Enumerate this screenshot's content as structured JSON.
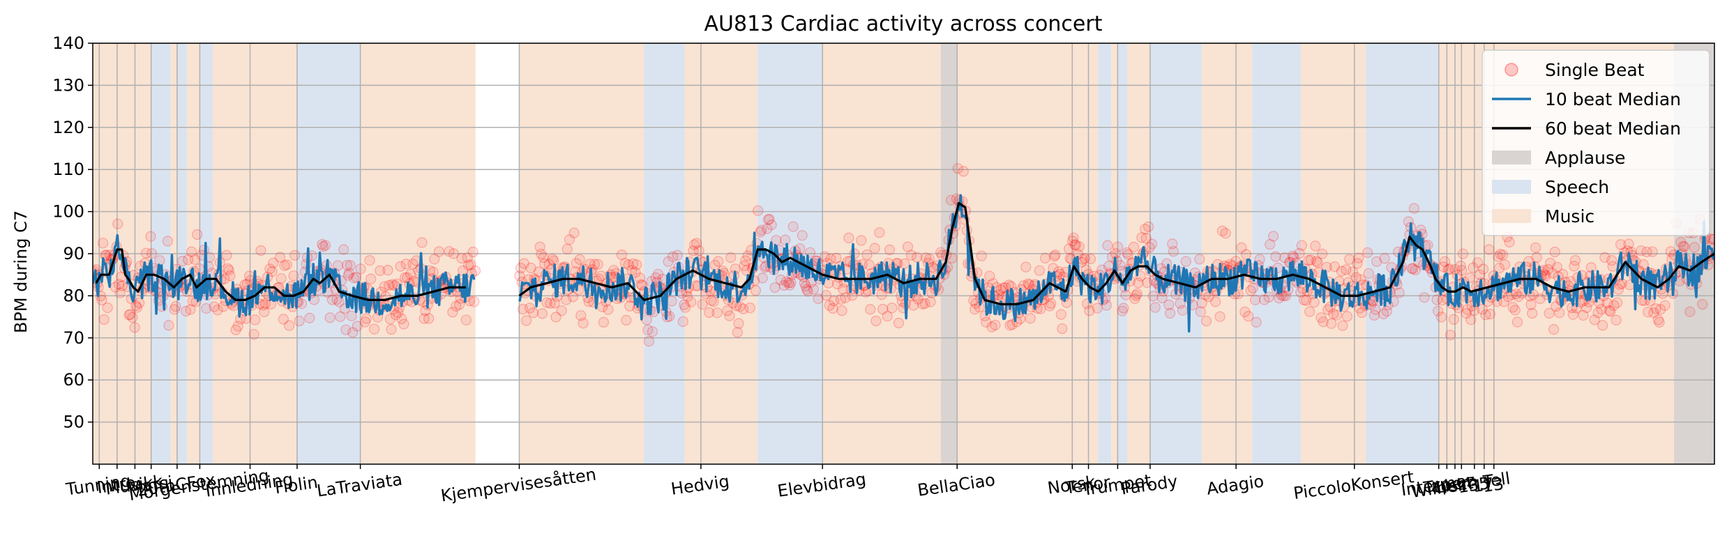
{
  "chart_data": {
    "type": "line",
    "title": "AU813 Cardiac activity across concert",
    "xlabel": "",
    "ylabel": "BPM during C7",
    "ylim": [
      40,
      140
    ],
    "yticks": [
      50,
      60,
      70,
      80,
      90,
      100,
      110,
      120,
      130,
      140
    ],
    "xlim": [
      0,
      1000
    ],
    "grid": true,
    "legend_position": "top-right",
    "colors": {
      "single_beat": "#ff0000",
      "median10": "#1f77b4",
      "median60": "#000000",
      "applause": "#d9d4d2",
      "speech": "#dae4f0",
      "music": "#f9e3d3"
    },
    "legend": [
      "Single Beat",
      "10 beat Median",
      "60 beat Median",
      "Applause",
      "Speech",
      "Music"
    ],
    "xtick_labels": [
      {
        "x": 4,
        "label": "Tunning"
      },
      {
        "x": 15,
        "label": "Intro"
      },
      {
        "x": 26,
        "label": "Musikk"
      },
      {
        "x": 36,
        "label": "Marsj"
      },
      {
        "x": 52,
        "label": "20thCFox"
      },
      {
        "x": 66,
        "label": "Morgenstemning"
      },
      {
        "x": 97,
        "label": "Innledning"
      },
      {
        "x": 126,
        "label": "Fiolin"
      },
      {
        "x": 165,
        "label": "LaTraviata"
      },
      {
        "x": 263,
        "label": "Kjempervisesåtten"
      },
      {
        "x": 375,
        "label": "Hedvig"
      },
      {
        "x": 450,
        "label": "Elevbidrag"
      },
      {
        "x": 533,
        "label": "BellaCiao"
      },
      {
        "x": 604,
        "label": "Norsk"
      },
      {
        "x": 614,
        "label": "Tenor"
      },
      {
        "x": 632,
        "label": "Trumpet"
      },
      {
        "x": 652,
        "label": "Parody"
      },
      {
        "x": 705,
        "label": "Adagio"
      },
      {
        "x": 778,
        "label": "PiccoloKonsert"
      },
      {
        "x": 830,
        "label": "Intermez"
      },
      {
        "x": 835,
        "label": "Taper"
      },
      {
        "x": 840,
        "label": "Liszt"
      },
      {
        "x": 844,
        "label": "Wilhelm Tell"
      },
      {
        "x": 852,
        "label": "135"
      },
      {
        "x": 858,
        "label": "17"
      },
      {
        "x": 864,
        "label": "13"
      }
    ],
    "regions": [
      {
        "start": 0,
        "end": 3,
        "type": "Music"
      },
      {
        "start": 3,
        "end": 15,
        "type": "Music"
      },
      {
        "start": 15,
        "end": 26,
        "type": "Music"
      },
      {
        "start": 26,
        "end": 36,
        "type": "Music"
      },
      {
        "start": 36,
        "end": 48,
        "type": "Speech"
      },
      {
        "start": 48,
        "end": 52,
        "type": "Music"
      },
      {
        "start": 52,
        "end": 58,
        "type": "Speech"
      },
      {
        "start": 58,
        "end": 66,
        "type": "Music"
      },
      {
        "start": 66,
        "end": 74,
        "type": "Speech"
      },
      {
        "start": 74,
        "end": 97,
        "type": "Music"
      },
      {
        "start": 97,
        "end": 126,
        "type": "Music"
      },
      {
        "start": 126,
        "end": 165,
        "type": "Speech"
      },
      {
        "start": 165,
        "end": 236,
        "type": "Music"
      },
      {
        "start": 263,
        "end": 340,
        "type": "Music"
      },
      {
        "start": 340,
        "end": 365,
        "type": "Speech"
      },
      {
        "start": 365,
        "end": 410,
        "type": "Music"
      },
      {
        "start": 410,
        "end": 450,
        "type": "Speech"
      },
      {
        "start": 450,
        "end": 523,
        "type": "Music"
      },
      {
        "start": 523,
        "end": 533,
        "type": "Applause"
      },
      {
        "start": 533,
        "end": 620,
        "type": "Music"
      },
      {
        "start": 620,
        "end": 628,
        "type": "Speech"
      },
      {
        "start": 628,
        "end": 632,
        "type": "Music"
      },
      {
        "start": 632,
        "end": 638,
        "type": "Speech"
      },
      {
        "start": 638,
        "end": 652,
        "type": "Music"
      },
      {
        "start": 652,
        "end": 684,
        "type": "Speech"
      },
      {
        "start": 684,
        "end": 715,
        "type": "Music"
      },
      {
        "start": 715,
        "end": 745,
        "type": "Speech"
      },
      {
        "start": 745,
        "end": 785,
        "type": "Music"
      },
      {
        "start": 785,
        "end": 830,
        "type": "Speech"
      },
      {
        "start": 830,
        "end": 975,
        "type": "Music"
      },
      {
        "start": 975,
        "end": 1000,
        "type": "Applause"
      }
    ],
    "median60": {
      "x": [
        2,
        5,
        10,
        15,
        18,
        20,
        22,
        25,
        28,
        33,
        38,
        44,
        50,
        55,
        60,
        64,
        70,
        76,
        82,
        88,
        94,
        100,
        106,
        112,
        118,
        124,
        130,
        136,
        140,
        146,
        152,
        160,
        170,
        180,
        190,
        200,
        210,
        220,
        230,
        240,
        248,
        255,
        263,
        270,
        280,
        290,
        300,
        310,
        320,
        330,
        340,
        350,
        360,
        370,
        380,
        390,
        400,
        405,
        410,
        415,
        420,
        425,
        430,
        440,
        450,
        460,
        470,
        480,
        490,
        500,
        510,
        520,
        526,
        530,
        534,
        538,
        544,
        550,
        560,
        570,
        580,
        590,
        600,
        605,
        610,
        615,
        620,
        625,
        630,
        635,
        640,
        645,
        650,
        655,
        660,
        670,
        680,
        690,
        700,
        710,
        720,
        730,
        740,
        750,
        760,
        770,
        780,
        790,
        800,
        808,
        812,
        816,
        820,
        825,
        828,
        832,
        836,
        840,
        845,
        850,
        860,
        870,
        880,
        890,
        900,
        910,
        920,
        928,
        935,
        945,
        955,
        965,
        972,
        978,
        985,
        992,
        1000
      ],
      "y": [
        83,
        85,
        85,
        91,
        91,
        85,
        84,
        82,
        81,
        85,
        85,
        84,
        82,
        84,
        85,
        82,
        84,
        84,
        81,
        79,
        79,
        80,
        82,
        82,
        80,
        80,
        81,
        84,
        83,
        85,
        81,
        80,
        79,
        79,
        80,
        80,
        81,
        82,
        82,
        83,
        87,
        85,
        80,
        82,
        83,
        84,
        84,
        83,
        82,
        83,
        79,
        80,
        84,
        86,
        84,
        83,
        82,
        84,
        91,
        91,
        90,
        88,
        89,
        87,
        85,
        84,
        84,
        84,
        85,
        83,
        84,
        84,
        88,
        96,
        102,
        101,
        84,
        79,
        78,
        78,
        79,
        83,
        81,
        87,
        84,
        82,
        81,
        83,
        86,
        83,
        86,
        87,
        87,
        85,
        84,
        83,
        82,
        84,
        84,
        85,
        84,
        84,
        85,
        84,
        82,
        80,
        80,
        81,
        82,
        88,
        94,
        92,
        91,
        87,
        84,
        82,
        81,
        81,
        82,
        81,
        82,
        83,
        84,
        84,
        82,
        81,
        82,
        82,
        82,
        88,
        84,
        82,
        84,
        87,
        86,
        88,
        90
      ]
    }
  }
}
